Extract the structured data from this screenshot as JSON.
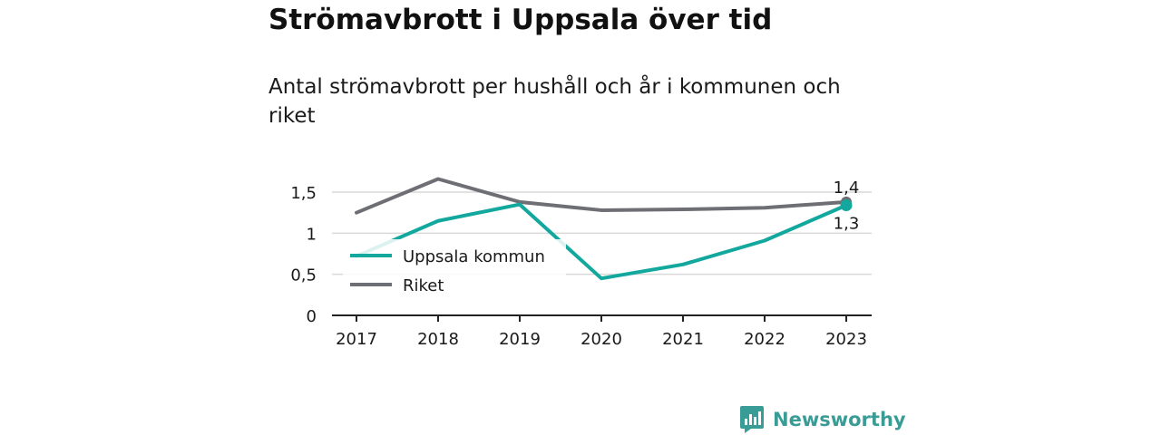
{
  "header": {
    "title": "Strömavbrott i Uppsala över tid",
    "subtitle": "Antal strömavbrott per hushåll och år i kommunen och riket"
  },
  "brand": {
    "name": "Newsworthy",
    "icon": "newsworthy-logo-icon",
    "color": "#3a9c96"
  },
  "chart_data": {
    "type": "line",
    "title": "Strömavbrott i Uppsala över tid",
    "subtitle": "Antal strömavbrott per hushåll och år i kommunen och riket",
    "xlabel": "",
    "ylabel": "",
    "x": [
      "2017",
      "2018",
      "2019",
      "2020",
      "2021",
      "2022",
      "2023"
    ],
    "ylim": [
      0,
      1.5
    ],
    "yticks": [
      0,
      0.5,
      1,
      1.5
    ],
    "ytick_labels": [
      "0",
      "0,5",
      "1",
      "1,5"
    ],
    "grid": true,
    "legend_placement": "bottom-left",
    "series": [
      {
        "name": "Uppsala kommun",
        "color": "#13a89e",
        "values": [
          0.72,
          1.15,
          1.35,
          0.45,
          0.62,
          0.91,
          1.34
        ],
        "end_label": "1,3"
      },
      {
        "name": "Riket",
        "color": "#6e6e75",
        "values": [
          1.25,
          1.66,
          1.38,
          1.28,
          1.29,
          1.31,
          1.38
        ],
        "end_label": "1,4"
      }
    ]
  }
}
